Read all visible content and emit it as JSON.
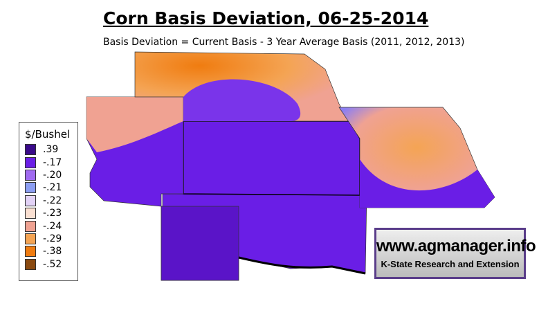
{
  "header": {
    "title": "Corn Basis Deviation, 06-25-2014",
    "subtitle": "Basis Deviation = Current Basis - 3 Year Average Basis (2011, 2012, 2013)"
  },
  "legend": {
    "title": "$/Bushel",
    "items": [
      {
        "label": ".39",
        "color": "#3a0a8a"
      },
      {
        "label": "-.17",
        "color": "#6a1ee6"
      },
      {
        "label": "-.20",
        "color": "#a06af0"
      },
      {
        "label": "-.21",
        "color": "#8c9ef2"
      },
      {
        "label": "-.22",
        "color": "#e2d2f6"
      },
      {
        "label": "-.23",
        "color": "#fae0d2"
      },
      {
        "label": "-.24",
        "color": "#f0a292"
      },
      {
        "label": "-.29",
        "color": "#f4a454"
      },
      {
        "label": "-.38",
        "color": "#f07c10"
      },
      {
        "label": "-.52",
        "color": "#8a4a10"
      }
    ]
  },
  "logo": {
    "url": "www.agmanager.info",
    "org": "K-State Research and Extension"
  }
}
